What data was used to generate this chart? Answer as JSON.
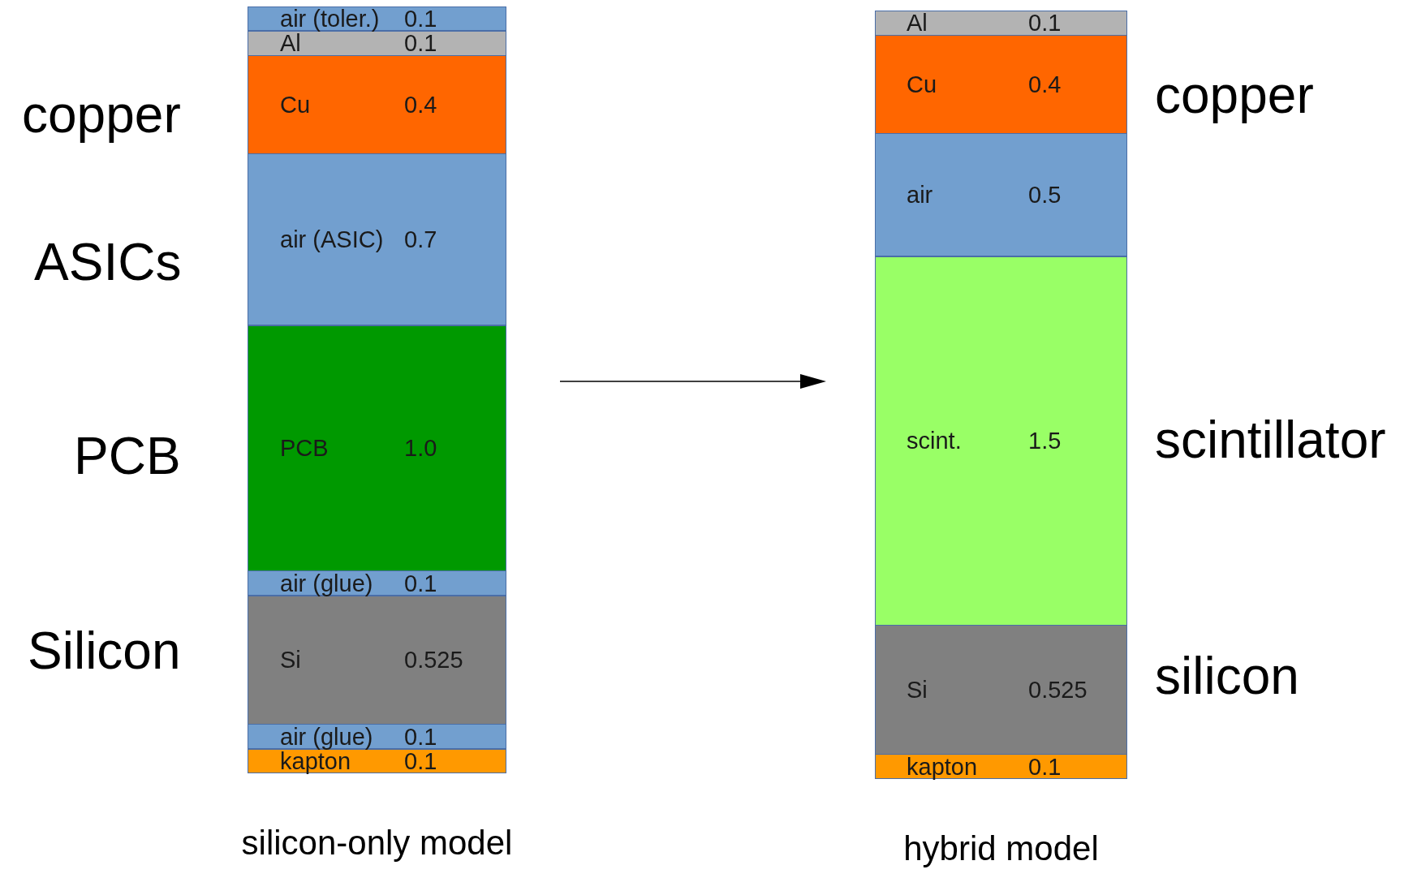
{
  "chart_data": [
    {
      "type": "bar",
      "stacked": true,
      "categories": [
        null
      ],
      "xlabel": "silicon-only model",
      "tick_labels": false,
      "series": [
        {
          "name": "kapton",
          "color": "#ff9900",
          "values": [
            0.1
          ],
          "value_labels": [
            "0.1"
          ]
        },
        {
          "name": "air (glue)",
          "color": "#729fcf",
          "values": [
            0.1
          ],
          "value_labels": [
            "0.1"
          ]
        },
        {
          "name": "Si",
          "color": "#808080",
          "values": [
            0.525
          ],
          "value_labels": [
            "0.525"
          ]
        },
        {
          "name": "air (glue)",
          "color": "#729fcf",
          "values": [
            0.1
          ],
          "value_labels": [
            "0.1"
          ]
        },
        {
          "name": "PCB",
          "color": "#009900",
          "values": [
            1.0
          ],
          "value_labels": [
            "1.0"
          ]
        },
        {
          "name": "air (ASIC)",
          "color": "#729fcf",
          "values": [
            0.7
          ],
          "value_labels": [
            "0.7"
          ]
        },
        {
          "name": "Cu",
          "color": "#ff6600",
          "values": [
            0.4
          ],
          "value_labels": [
            "0.4"
          ]
        },
        {
          "name": "Al",
          "color": "#b3b3b3",
          "values": [
            0.1
          ],
          "value_labels": [
            "0.1"
          ]
        },
        {
          "name": "air (toler.)",
          "color": "#729fcf",
          "values": [
            0.1
          ],
          "value_labels": [
            "0.1"
          ]
        }
      ],
      "annotations": [
        "copper",
        "ASICs",
        "PCB",
        "Silicon"
      ]
    },
    {
      "type": "bar",
      "stacked": true,
      "categories": [
        null
      ],
      "xlabel": "hybrid model",
      "tick_labels": false,
      "series": [
        {
          "name": "kapton",
          "color": "#ff9900",
          "values": [
            0.1
          ],
          "value_labels": [
            "0.1"
          ]
        },
        {
          "name": "Si",
          "color": "#808080",
          "values": [
            0.525
          ],
          "value_labels": [
            "0.525"
          ]
        },
        {
          "name": "scint.",
          "color": "#99ff66",
          "values": [
            1.5
          ],
          "value_labels": [
            "1.5"
          ]
        },
        {
          "name": "air",
          "color": "#729fcf",
          "values": [
            0.5
          ],
          "value_labels": [
            "0.5"
          ]
        },
        {
          "name": "Cu",
          "color": "#ff6600",
          "values": [
            0.4
          ],
          "value_labels": [
            "0.4"
          ]
        },
        {
          "name": "Al",
          "color": "#b3b3b3",
          "values": [
            0.1
          ],
          "value_labels": [
            "0.1"
          ]
        }
      ],
      "annotations": [
        "copper",
        "scintillator",
        "silicon"
      ]
    }
  ]
}
